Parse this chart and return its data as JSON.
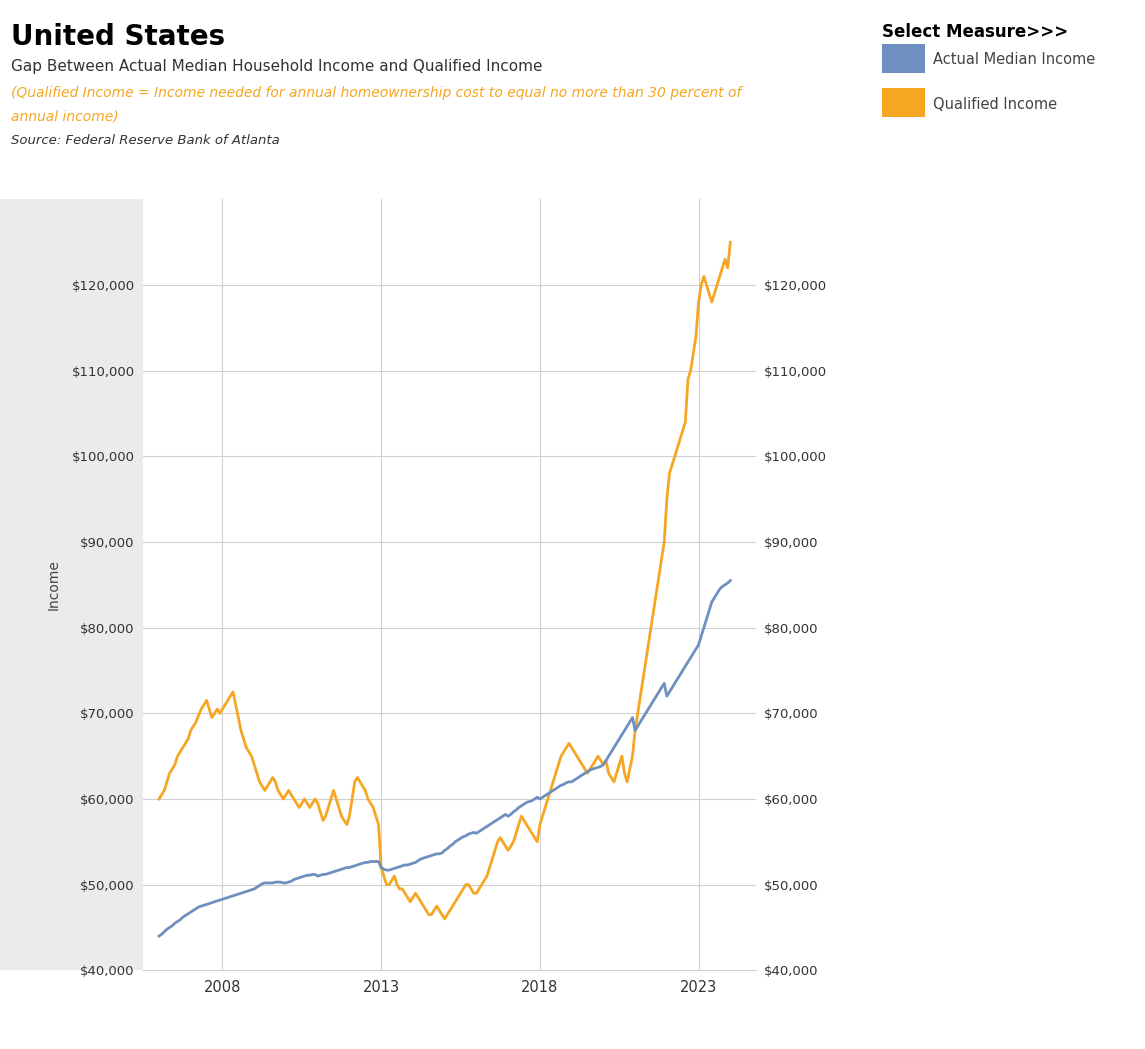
{
  "title": "United States",
  "subtitle": "Gap Between Actual Median Household Income and Qualified Income",
  "subtitle2_line1": "(Qualified Income = Income needed for annual homeownership cost to equal no more than 30 percent of",
  "subtitle2_line2": "annual income)",
  "source": "Source: Federal Reserve Bank of Atlanta",
  "legend_title": "Select Measure>>>",
  "ylabel": "Income",
  "ylim": [
    40000,
    130000
  ],
  "yticks": [
    40000,
    50000,
    60000,
    70000,
    80000,
    90000,
    100000,
    110000,
    120000
  ],
  "actual_color": "#6E8FBF",
  "qualified_color": "#F5A623",
  "grey_panel_color": "#EBEBEB",
  "plot_bg_color": "#FFFFFF",
  "grid_color": "#D0D0D0",
  "actual_label": "Actual Median Income",
  "qualified_label": "Qualified Income",
  "xtick_locs": [
    2008,
    2013,
    2018,
    2023
  ],
  "xlim": [
    2005.5,
    2024.8
  ],
  "years": [
    2006.0,
    2006.083,
    2006.167,
    2006.25,
    2006.333,
    2006.417,
    2006.5,
    2006.583,
    2006.667,
    2006.75,
    2006.833,
    2006.917,
    2007.0,
    2007.083,
    2007.167,
    2007.25,
    2007.333,
    2007.417,
    2007.5,
    2007.583,
    2007.667,
    2007.75,
    2007.833,
    2007.917,
    2008.0,
    2008.083,
    2008.167,
    2008.25,
    2008.333,
    2008.417,
    2008.5,
    2008.583,
    2008.667,
    2008.75,
    2008.833,
    2008.917,
    2009.0,
    2009.083,
    2009.167,
    2009.25,
    2009.333,
    2009.417,
    2009.5,
    2009.583,
    2009.667,
    2009.75,
    2009.833,
    2009.917,
    2010.0,
    2010.083,
    2010.167,
    2010.25,
    2010.333,
    2010.417,
    2010.5,
    2010.583,
    2010.667,
    2010.75,
    2010.833,
    2010.917,
    2011.0,
    2011.083,
    2011.167,
    2011.25,
    2011.333,
    2011.417,
    2011.5,
    2011.583,
    2011.667,
    2011.75,
    2011.833,
    2011.917,
    2012.0,
    2012.083,
    2012.167,
    2012.25,
    2012.333,
    2012.417,
    2012.5,
    2012.583,
    2012.667,
    2012.75,
    2012.833,
    2012.917,
    2013.0,
    2013.083,
    2013.167,
    2013.25,
    2013.333,
    2013.417,
    2013.5,
    2013.583,
    2013.667,
    2013.75,
    2013.833,
    2013.917,
    2014.0,
    2014.083,
    2014.167,
    2014.25,
    2014.333,
    2014.417,
    2014.5,
    2014.583,
    2014.667,
    2014.75,
    2014.833,
    2014.917,
    2015.0,
    2015.083,
    2015.167,
    2015.25,
    2015.333,
    2015.417,
    2015.5,
    2015.583,
    2015.667,
    2015.75,
    2015.833,
    2015.917,
    2016.0,
    2016.083,
    2016.167,
    2016.25,
    2016.333,
    2016.417,
    2016.5,
    2016.583,
    2016.667,
    2016.75,
    2016.833,
    2016.917,
    2017.0,
    2017.083,
    2017.167,
    2017.25,
    2017.333,
    2017.417,
    2017.5,
    2017.583,
    2017.667,
    2017.75,
    2017.833,
    2017.917,
    2018.0,
    2018.083,
    2018.167,
    2018.25,
    2018.333,
    2018.417,
    2018.5,
    2018.583,
    2018.667,
    2018.75,
    2018.833,
    2018.917,
    2019.0,
    2019.083,
    2019.167,
    2019.25,
    2019.333,
    2019.417,
    2019.5,
    2019.583,
    2019.667,
    2019.75,
    2019.833,
    2019.917,
    2020.0,
    2020.083,
    2020.167,
    2020.25,
    2020.333,
    2020.417,
    2020.5,
    2020.583,
    2020.667,
    2020.75,
    2020.833,
    2020.917,
    2021.0,
    2021.083,
    2021.167,
    2021.25,
    2021.333,
    2021.417,
    2021.5,
    2021.583,
    2021.667,
    2021.75,
    2021.833,
    2021.917,
    2022.0,
    2022.083,
    2022.167,
    2022.25,
    2022.333,
    2022.417,
    2022.5,
    2022.583,
    2022.667,
    2022.75,
    2022.833,
    2022.917,
    2023.0,
    2023.083,
    2023.167,
    2023.25,
    2023.333,
    2023.417,
    2023.5,
    2023.583,
    2023.667,
    2023.75,
    2023.833,
    2023.917,
    2024.0
  ],
  "actual_income": [
    44000,
    44200,
    44500,
    44800,
    45000,
    45200,
    45500,
    45700,
    45900,
    46200,
    46400,
    46600,
    46800,
    47000,
    47200,
    47400,
    47500,
    47600,
    47700,
    47800,
    47900,
    48000,
    48100,
    48200,
    48300,
    48400,
    48500,
    48600,
    48700,
    48800,
    48900,
    49000,
    49100,
    49200,
    49300,
    49400,
    49500,
    49700,
    49900,
    50100,
    50200,
    50200,
    50200,
    50200,
    50300,
    50300,
    50300,
    50200,
    50200,
    50300,
    50400,
    50600,
    50700,
    50800,
    50900,
    51000,
    51100,
    51100,
    51200,
    51200,
    51000,
    51100,
    51200,
    51200,
    51300,
    51400,
    51500,
    51600,
    51700,
    51800,
    51900,
    52000,
    52000,
    52100,
    52200,
    52300,
    52400,
    52500,
    52600,
    52600,
    52700,
    52700,
    52700,
    52700,
    52000,
    51800,
    51700,
    51700,
    51800,
    51900,
    52000,
    52100,
    52200,
    52300,
    52300,
    52400,
    52500,
    52600,
    52800,
    53000,
    53100,
    53200,
    53300,
    53400,
    53500,
    53600,
    53600,
    53700,
    54000,
    54200,
    54500,
    54700,
    55000,
    55200,
    55400,
    55600,
    55700,
    55900,
    56000,
    56100,
    56000,
    56200,
    56400,
    56600,
    56800,
    57000,
    57200,
    57400,
    57600,
    57800,
    58000,
    58200,
    58000,
    58200,
    58500,
    58700,
    59000,
    59200,
    59400,
    59600,
    59700,
    59800,
    60000,
    60200,
    60000,
    60200,
    60400,
    60600,
    60800,
    61000,
    61200,
    61400,
    61600,
    61700,
    61900,
    62000,
    62000,
    62200,
    62400,
    62600,
    62800,
    63000,
    63200,
    63400,
    63500,
    63600,
    63700,
    63800,
    64000,
    64500,
    65000,
    65500,
    66000,
    66500,
    67000,
    67500,
    68000,
    68500,
    69000,
    69500,
    68000,
    68500,
    69000,
    69500,
    70000,
    70500,
    71000,
    71500,
    72000,
    72500,
    73000,
    73500,
    72000,
    72500,
    73000,
    73500,
    74000,
    74500,
    75000,
    75500,
    76000,
    76500,
    77000,
    77500,
    78000,
    79000,
    80000,
    81000,
    82000,
    83000,
    83500,
    84000,
    84500,
    84800,
    85000,
    85200,
    85500
  ],
  "qualified_income": [
    60000,
    60500,
    61000,
    62000,
    63000,
    63500,
    64000,
    65000,
    65500,
    66000,
    66500,
    67000,
    68000,
    68500,
    69000,
    69800,
    70500,
    71000,
    71500,
    70500,
    69500,
    70000,
    70500,
    70000,
    70500,
    71000,
    71500,
    72000,
    72500,
    71000,
    69500,
    68000,
    67000,
    66000,
    65500,
    65000,
    64000,
    63000,
    62000,
    61500,
    61000,
    61500,
    62000,
    62500,
    62000,
    61000,
    60500,
    60000,
    60500,
    61000,
    60500,
    60000,
    59500,
    59000,
    59500,
    60000,
    59500,
    59000,
    59500,
    60000,
    59500,
    58500,
    57500,
    58000,
    59000,
    60000,
    61000,
    60000,
    59000,
    58000,
    57500,
    57000,
    58000,
    60000,
    62000,
    62500,
    62000,
    61500,
    61000,
    60000,
    59500,
    59000,
    58000,
    57000,
    52000,
    51000,
    50000,
    50000,
    50500,
    51000,
    50000,
    49500,
    49500,
    49000,
    48500,
    48000,
    48500,
    49000,
    48500,
    48000,
    47500,
    47000,
    46500,
    46500,
    47000,
    47500,
    47000,
    46500,
    46000,
    46500,
    47000,
    47500,
    48000,
    48500,
    49000,
    49500,
    50000,
    50000,
    49500,
    49000,
    49000,
    49500,
    50000,
    50500,
    51000,
    52000,
    53000,
    54000,
    55000,
    55500,
    55000,
    54500,
    54000,
    54500,
    55000,
    56000,
    57000,
    58000,
    57500,
    57000,
    56500,
    56000,
    55500,
    55000,
    57000,
    58000,
    59000,
    60000,
    61000,
    62000,
    63000,
    64000,
    65000,
    65500,
    66000,
    66500,
    66000,
    65500,
    65000,
    64500,
    64000,
    63500,
    63000,
    63500,
    64000,
    64500,
    65000,
    64500,
    64000,
    64500,
    63000,
    62500,
    62000,
    63000,
    64000,
    65000,
    63000,
    62000,
    63500,
    65000,
    68000,
    70000,
    72000,
    74000,
    76000,
    78000,
    80000,
    82000,
    84000,
    86000,
    88000,
    90000,
    95000,
    98000,
    99000,
    100000,
    101000,
    102000,
    103000,
    104000,
    109000,
    110000,
    112000,
    114000,
    118000,
    120000,
    121000,
    120000,
    119000,
    118000,
    119000,
    120000,
    121000,
    122000,
    123000,
    122000,
    125000
  ]
}
